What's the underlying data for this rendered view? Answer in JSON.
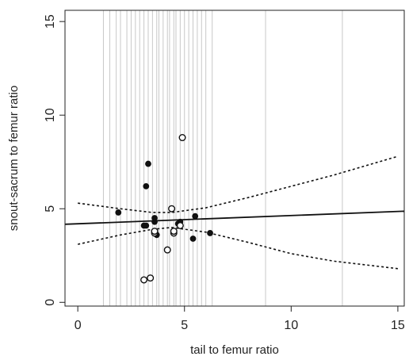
{
  "chart_data": {
    "type": "scatter",
    "xlabel": "tail to femur ratio",
    "ylabel": "snout-sacrum to femur ratio",
    "xlim": [
      -0.6,
      15.3
    ],
    "ylim": [
      -0.2,
      15.6
    ],
    "xticks": [
      0,
      5,
      10,
      15
    ],
    "yticks": [
      0,
      5,
      10,
      15
    ],
    "xtick_labels": [
      "0",
      "5",
      "10",
      "15"
    ],
    "ytick_labels": [
      "0",
      "5",
      "10",
      "15"
    ],
    "grid": false,
    "vertical_reference_lines": [
      1.2,
      1.5,
      1.8,
      2.0,
      2.3,
      2.5,
      2.7,
      2.9,
      3.1,
      3.3,
      3.5,
      3.7,
      3.8,
      4.0,
      4.2,
      4.3,
      4.5,
      4.6,
      4.8,
      5.0,
      5.2,
      5.4,
      5.6,
      5.8,
      6.0,
      6.3,
      8.8,
      12.4
    ],
    "series": [
      {
        "marker": "filled-circle",
        "points": [
          {
            "x": 1.9,
            "y": 4.8
          },
          {
            "x": 3.1,
            "y": 4.1
          },
          {
            "x": 3.2,
            "y": 4.1
          },
          {
            "x": 3.2,
            "y": 6.2
          },
          {
            "x": 3.3,
            "y": 7.4
          },
          {
            "x": 3.6,
            "y": 4.3
          },
          {
            "x": 3.6,
            "y": 4.5
          },
          {
            "x": 3.7,
            "y": 3.6
          },
          {
            "x": 4.7,
            "y": 4.2
          },
          {
            "x": 4.8,
            "y": 4.3
          },
          {
            "x": 5.4,
            "y": 3.4
          },
          {
            "x": 5.5,
            "y": 4.6
          },
          {
            "x": 6.2,
            "y": 3.7
          }
        ]
      },
      {
        "marker": "open-circle",
        "points": [
          {
            "x": 3.1,
            "y": 1.2
          },
          {
            "x": 3.4,
            "y": 1.3
          },
          {
            "x": 3.6,
            "y": 3.7
          },
          {
            "x": 3.6,
            "y": 3.8
          },
          {
            "x": 4.2,
            "y": 2.8
          },
          {
            "x": 4.4,
            "y": 5.0
          },
          {
            "x": 4.5,
            "y": 3.7
          },
          {
            "x": 4.5,
            "y": 3.8
          },
          {
            "x": 4.8,
            "y": 4.1
          },
          {
            "x": 4.9,
            "y": 8.8
          }
        ]
      }
    ],
    "fit_line": {
      "style": "solid",
      "x": [
        -0.6,
        15.3
      ],
      "y": [
        4.17,
        4.87
      ]
    },
    "confidence_band": {
      "style": "dotted",
      "upper": {
        "x": [
          0,
          2,
          3.5,
          4.4,
          6,
          8,
          10,
          12,
          15
        ],
        "y": [
          5.3,
          5.0,
          4.8,
          4.8,
          5.05,
          5.6,
          6.2,
          6.8,
          7.8
        ]
      },
      "lower": {
        "x": [
          0,
          2,
          3.5,
          4.4,
          6,
          8,
          10,
          12,
          15
        ],
        "y": [
          3.1,
          3.6,
          3.9,
          4.0,
          3.75,
          3.2,
          2.6,
          2.2,
          1.8
        ]
      }
    }
  }
}
